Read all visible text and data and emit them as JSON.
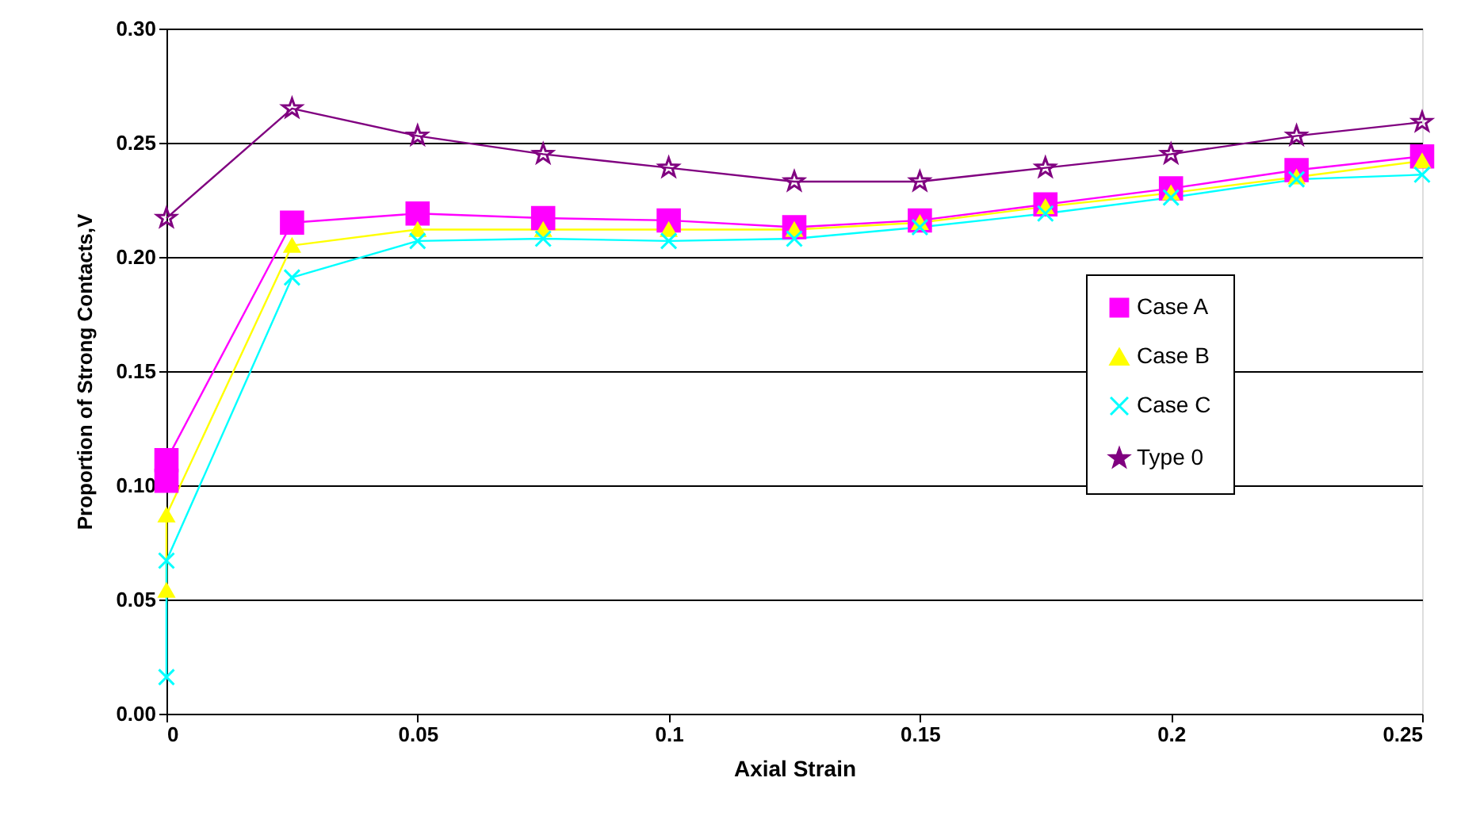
{
  "chart_data": {
    "type": "line",
    "xlabel": "Axial Strain",
    "ylabel": "Proportion of Strong Contacts,V",
    "xlim": [
      0,
      0.25
    ],
    "xticks": [
      0,
      0.05,
      0.1,
      0.15,
      0.2,
      0.25
    ],
    "ylim": [
      0,
      0.3
    ],
    "yticks": [
      {
        "value": 0,
        "label": "0.00"
      },
      {
        "value": 0.05,
        "label": "0.05"
      },
      {
        "value": 0.1,
        "label": "0.10"
      },
      {
        "value": 0.15,
        "label": "0.15"
      },
      {
        "value": 0.2,
        "label": "0.20"
      },
      {
        "value": 0.25,
        "label": "0.25"
      },
      {
        "value": 0.3,
        "label": "0.30"
      }
    ],
    "grid": "y",
    "legend": "right",
    "line_style": "solid",
    "series": [
      {
        "name": "Case A",
        "color": "#ff00ff",
        "marker": "square",
        "x": [
          0,
          0,
          0.025,
          0.05,
          0.075,
          0.1,
          0.125,
          0.15,
          0.175,
          0.2,
          0.225,
          0.25
        ],
        "values": [
          0.102,
          0.111,
          0.215,
          0.219,
          0.217,
          0.216,
          0.213,
          0.216,
          0.223,
          0.23,
          0.238,
          0.244
        ]
      },
      {
        "name": "Case B",
        "color": "#ffff00",
        "marker": "triangle",
        "x": [
          0,
          0,
          0.025,
          0.05,
          0.075,
          0.1,
          0.125,
          0.15,
          0.175,
          0.2,
          0.225,
          0.25
        ],
        "values": [
          0.054,
          0.087,
          0.205,
          0.212,
          0.212,
          0.212,
          0.212,
          0.215,
          0.222,
          0.228,
          0.235,
          0.242
        ]
      },
      {
        "name": "Case C",
        "color": "#00ffff",
        "marker": "cross",
        "x": [
          0,
          0,
          0.025,
          0.05,
          0.075,
          0.1,
          0.125,
          0.15,
          0.175,
          0.2,
          0.225,
          0.25
        ],
        "values": [
          0.016,
          0.067,
          0.191,
          0.207,
          0.208,
          0.207,
          0.208,
          0.213,
          0.219,
          0.226,
          0.234,
          0.236
        ]
      },
      {
        "name": "Type 0",
        "color": "#800080",
        "marker": "star",
        "x": [
          0,
          0.025,
          0.05,
          0.075,
          0.1,
          0.125,
          0.15,
          0.175,
          0.2,
          0.225,
          0.25
        ],
        "values": [
          0.217,
          0.265,
          0.253,
          0.245,
          0.239,
          0.233,
          0.233,
          0.239,
          0.245,
          0.253,
          0.259
        ]
      }
    ]
  }
}
